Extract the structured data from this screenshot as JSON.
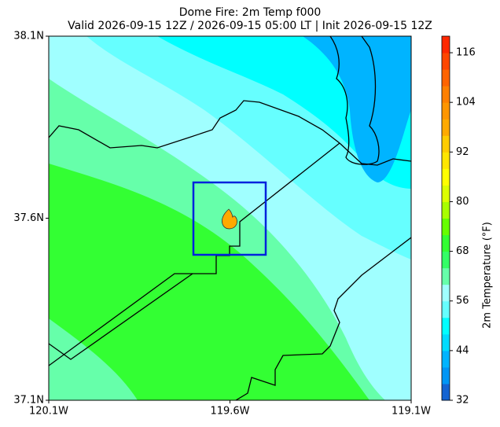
{
  "chart_data": {
    "type": "map",
    "title": "Dome Fire: 2m Temp f000",
    "subtitle": "Valid 2026-09-15 12Z / 2026-09-15 05:00 LT | Init 2026-09-15 12Z",
    "xlim": [
      -120.1,
      -119.1
    ],
    "xticks": [
      {
        "value": -120.1,
        "label": "120.1W"
      },
      {
        "value": -119.6,
        "label": "119.6W"
      },
      {
        "value": -119.1,
        "label": "119.1W"
      }
    ],
    "ylim": [
      37.1,
      38.1
    ],
    "yticks": [
      {
        "value": 37.1,
        "label": "37.1N"
      },
      {
        "value": 37.6,
        "label": "37.6N"
      },
      {
        "value": 38.1,
        "label": "38.1N"
      }
    ],
    "colorbar": {
      "label": "2m Temperature (°F)",
      "lim": [
        32,
        120
      ],
      "ticks": [
        32,
        44,
        56,
        68,
        80,
        92,
        104,
        116
      ],
      "levels": [
        32,
        36,
        40,
        44,
        48,
        52,
        56,
        60,
        64,
        68,
        72,
        76,
        80,
        84,
        88,
        92,
        96,
        100,
        104,
        108,
        112,
        116,
        120
      ],
      "colors": [
        "#1464d2",
        "#0096f5",
        "#00b4ff",
        "#00dcff",
        "#00ffff",
        "#66ffff",
        "#a0ffff",
        "#66ffaa",
        "#33ff66",
        "#33ff33",
        "#66ff00",
        "#a8ff00",
        "#dcff00",
        "#ffff00",
        "#ffe600",
        "#ffcc00",
        "#ffaa00",
        "#ff9600",
        "#ff8000",
        "#ff6400",
        "#ff4600",
        "#ff2800"
      ]
    }
  }
}
